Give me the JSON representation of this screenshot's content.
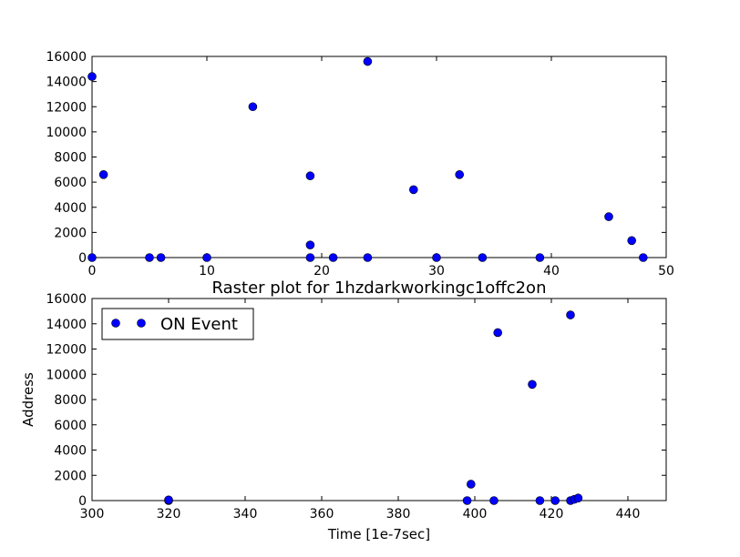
{
  "chart_data": [
    {
      "type": "scatter",
      "title": "",
      "xlabel": "",
      "ylabel": "",
      "xlim": [
        0,
        50
      ],
      "ylim": [
        0,
        16000
      ],
      "xticks": [
        0,
        10,
        20,
        30,
        40,
        50
      ],
      "yticks": [
        0,
        2000,
        4000,
        6000,
        8000,
        10000,
        12000,
        14000,
        16000
      ],
      "grid": false,
      "legend": null,
      "marker_color": "#0000ff",
      "points": [
        {
          "x": 0,
          "y": 14400
        },
        {
          "x": 0,
          "y": 0
        },
        {
          "x": 1,
          "y": 6600
        },
        {
          "x": 5,
          "y": 0
        },
        {
          "x": 6,
          "y": 0
        },
        {
          "x": 10,
          "y": 0
        },
        {
          "x": 14,
          "y": 12000
        },
        {
          "x": 19,
          "y": 6500
        },
        {
          "x": 19,
          "y": 1000
        },
        {
          "x": 19,
          "y": 0
        },
        {
          "x": 21,
          "y": 0
        },
        {
          "x": 24,
          "y": 15600
        },
        {
          "x": 24,
          "y": 0
        },
        {
          "x": 28,
          "y": 5400
        },
        {
          "x": 30,
          "y": 0
        },
        {
          "x": 32,
          "y": 6600
        },
        {
          "x": 34,
          "y": 0
        },
        {
          "x": 39,
          "y": 0
        },
        {
          "x": 45,
          "y": 3250
        },
        {
          "x": 47,
          "y": 1350
        },
        {
          "x": 48,
          "y": 0
        }
      ]
    },
    {
      "type": "scatter",
      "title": "Raster plot for 1hzdarkworkingc1offc2on",
      "xlabel": "Time [1e-7sec]",
      "ylabel": "Address",
      "xlim": [
        300,
        450
      ],
      "ylim": [
        0,
        16000
      ],
      "xticks": [
        300,
        320,
        340,
        360,
        380,
        400,
        420,
        440
      ],
      "yticks": [
        0,
        2000,
        4000,
        6000,
        8000,
        10000,
        12000,
        14000,
        16000
      ],
      "grid": false,
      "legend": {
        "position": "top-left",
        "entries": [
          "ON Event"
        ]
      },
      "marker_color": "#0000ff",
      "series": [
        {
          "name": "ON Event",
          "points": [
            {
              "x": 320,
              "y": 0
            },
            {
              "x": 320,
              "y": 50
            },
            {
              "x": 398,
              "y": 0
            },
            {
              "x": 399,
              "y": 1300
            },
            {
              "x": 405,
              "y": 0
            },
            {
              "x": 406,
              "y": 13300
            },
            {
              "x": 415,
              "y": 9200
            },
            {
              "x": 417,
              "y": 0
            },
            {
              "x": 421,
              "y": 0
            },
            {
              "x": 425,
              "y": 14700
            },
            {
              "x": 425,
              "y": 0
            },
            {
              "x": 426,
              "y": 100
            },
            {
              "x": 427,
              "y": 200
            }
          ]
        }
      ]
    }
  ]
}
